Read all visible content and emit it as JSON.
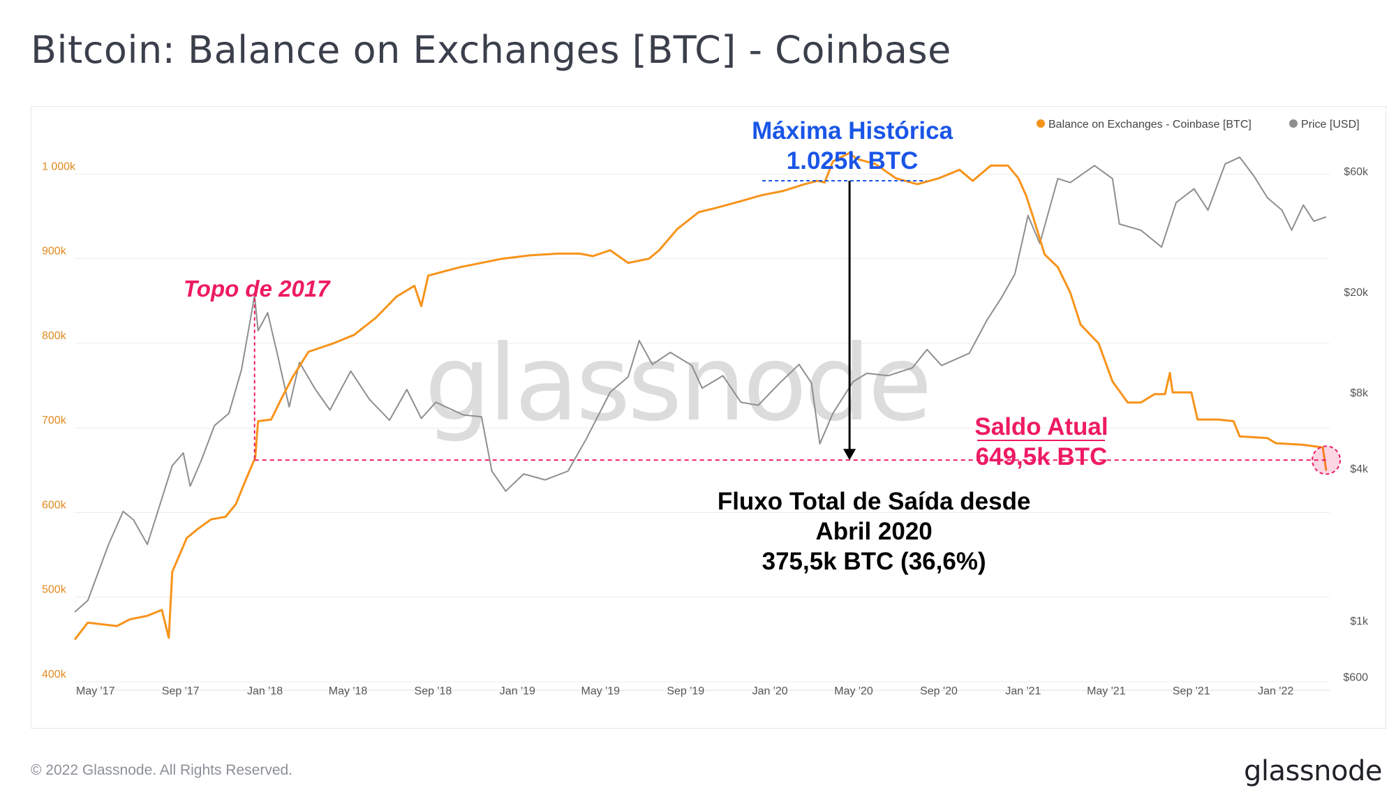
{
  "title": "Bitcoin: Balance on Exchanges [BTC] - Coinbase",
  "footer": "© 2022 Glassnode. All Rights Reserved.",
  "brand": "glassnode",
  "watermark": "glassnode",
  "colors": {
    "balance": "#f7931a",
    "price": "#8e8e8e",
    "ath_annotation": "#1a55e8",
    "current_annotation": "#ee1a64",
    "top_annotation": "#ee1a64",
    "outflow_annotation": "#000000",
    "grid": "#ececec",
    "left_axis": "#e08a20",
    "right_axis": "#555555"
  },
  "annotations": {
    "top_2017": "Topo de 2017",
    "ath_line1": "Máxima Histórica",
    "ath_line2": "1.025k BTC",
    "current_line1": "Saldo Atual",
    "current_line2": "649,5k BTC",
    "outflow_line1": "Fluxo Total de Saída desde",
    "outflow_line2": "Abril 2020",
    "outflow_line3": "375,5k BTC (36,6%)"
  },
  "chart_data": {
    "type": "line",
    "title": "Bitcoin: Balance on Exchanges [BTC] - Coinbase",
    "x_range": [
      "2017-04-01",
      "2022-03-20"
    ],
    "x_ticks": [
      "May '17",
      "Sep '17",
      "Jan '18",
      "May '18",
      "Sep '18",
      "Jan '19",
      "May '19",
      "Sep '19",
      "Jan '20",
      "May '20",
      "Sep '20",
      "Jan '21",
      "May '21",
      "Sep '21",
      "Jan '22"
    ],
    "y_left": {
      "ticks": [
        "400k",
        "500k",
        "600k",
        "700k",
        "800k",
        "900k",
        "1 000k"
      ],
      "tick_values": [
        400000,
        500000,
        600000,
        700000,
        800000,
        900000,
        1000000
      ],
      "range": [
        400000,
        1030000
      ]
    },
    "y_right": {
      "scale": "log",
      "ticks": [
        "$600",
        "$1k",
        "$4k",
        "$8k",
        "$20k",
        "$60k"
      ],
      "tick_values": [
        600,
        1000,
        4000,
        8000,
        20000,
        60000
      ]
    },
    "legend": {
      "position": "top-right",
      "items": [
        "Balance on Exchanges - Coinbase [BTC]",
        "Price [USD]"
      ]
    },
    "grid": true,
    "series": [
      {
        "name": "Balance on Exchanges - Coinbase [BTC]",
        "axis": "left",
        "points": [
          [
            "2017-04-01",
            450000
          ],
          [
            "2017-04-20",
            470000
          ],
          [
            "2017-05-10",
            468000
          ],
          [
            "2017-06-01",
            466000
          ],
          [
            "2017-06-20",
            474000
          ],
          [
            "2017-07-15",
            478000
          ],
          [
            "2017-08-05",
            485000
          ],
          [
            "2017-08-15",
            452000
          ],
          [
            "2017-08-20",
            530000
          ],
          [
            "2017-09-10",
            570000
          ],
          [
            "2017-09-25",
            580000
          ],
          [
            "2017-10-15",
            592000
          ],
          [
            "2017-11-05",
            595000
          ],
          [
            "2017-11-20",
            610000
          ],
          [
            "2017-12-05",
            640000
          ],
          [
            "2017-12-18",
            665000
          ],
          [
            "2017-12-22",
            708000
          ],
          [
            "2018-01-10",
            710000
          ],
          [
            "2018-01-25",
            735000
          ],
          [
            "2018-02-10",
            760000
          ],
          [
            "2018-03-05",
            790000
          ],
          [
            "2018-04-10",
            800000
          ],
          [
            "2018-05-10",
            810000
          ],
          [
            "2018-06-10",
            830000
          ],
          [
            "2018-07-10",
            855000
          ],
          [
            "2018-08-05",
            868000
          ],
          [
            "2018-08-15",
            844000
          ],
          [
            "2018-08-25",
            880000
          ],
          [
            "2018-10-10",
            890000
          ],
          [
            "2018-12-10",
            900000
          ],
          [
            "2019-01-20",
            904000
          ],
          [
            "2019-03-01",
            906000
          ],
          [
            "2019-04-01",
            906000
          ],
          [
            "2019-04-20",
            903000
          ],
          [
            "2019-05-15",
            910000
          ],
          [
            "2019-06-10",
            895000
          ],
          [
            "2019-07-10",
            900000
          ],
          [
            "2019-07-25",
            910000
          ],
          [
            "2019-08-20",
            935000
          ],
          [
            "2019-09-20",
            955000
          ],
          [
            "2019-10-15",
            960000
          ],
          [
            "2019-11-20",
            968000
          ],
          [
            "2019-12-20",
            975000
          ],
          [
            "2020-01-20",
            980000
          ],
          [
            "2020-02-20",
            988000
          ],
          [
            "2020-03-10",
            992000
          ],
          [
            "2020-03-20",
            990000
          ],
          [
            "2020-04-01",
            1015000
          ],
          [
            "2020-04-25",
            1025000
          ],
          [
            "2020-05-05",
            1018000
          ],
          [
            "2020-06-01",
            1012000
          ],
          [
            "2020-07-01",
            995000
          ],
          [
            "2020-08-01",
            988000
          ],
          [
            "2020-09-01",
            995000
          ],
          [
            "2020-10-01",
            1005000
          ],
          [
            "2020-10-20",
            992000
          ],
          [
            "2020-11-15",
            1010000
          ],
          [
            "2020-12-10",
            1010000
          ],
          [
            "2020-12-25",
            995000
          ],
          [
            "2021-01-05",
            975000
          ],
          [
            "2021-01-15",
            950000
          ],
          [
            "2021-02-01",
            905000
          ],
          [
            "2021-02-20",
            890000
          ],
          [
            "2021-03-10",
            860000
          ],
          [
            "2021-03-25",
            822000
          ],
          [
            "2021-04-20",
            800000
          ],
          [
            "2021-05-10",
            755000
          ],
          [
            "2021-06-01",
            730000
          ],
          [
            "2021-06-20",
            730000
          ],
          [
            "2021-07-10",
            740000
          ],
          [
            "2021-07-25",
            740000
          ],
          [
            "2021-08-01",
            765000
          ],
          [
            "2021-08-05",
            742000
          ],
          [
            "2021-09-01",
            742000
          ],
          [
            "2021-09-10",
            710000
          ],
          [
            "2021-10-10",
            710000
          ],
          [
            "2021-11-01",
            708000
          ],
          [
            "2021-11-10",
            690000
          ],
          [
            "2021-12-20",
            688000
          ],
          [
            "2022-01-01",
            682000
          ],
          [
            "2022-02-10",
            680000
          ],
          [
            "2022-03-10",
            677000
          ],
          [
            "2022-03-15",
            649500
          ]
        ]
      },
      {
        "name": "Price [USD]",
        "axis": "right",
        "points": [
          [
            "2017-04-01",
            1080
          ],
          [
            "2017-04-20",
            1200
          ],
          [
            "2017-05-20",
            2000
          ],
          [
            "2017-06-10",
            2700
          ],
          [
            "2017-06-25",
            2500
          ],
          [
            "2017-07-15",
            2000
          ],
          [
            "2017-08-01",
            2800
          ],
          [
            "2017-08-20",
            4100
          ],
          [
            "2017-09-05",
            4600
          ],
          [
            "2017-09-15",
            3400
          ],
          [
            "2017-10-01",
            4300
          ],
          [
            "2017-10-20",
            5900
          ],
          [
            "2017-11-10",
            6600
          ],
          [
            "2017-11-28",
            9800
          ],
          [
            "2017-12-10",
            15000
          ],
          [
            "2017-12-17",
            19300
          ],
          [
            "2017-12-22",
            14000
          ],
          [
            "2018-01-05",
            16500
          ],
          [
            "2018-01-20",
            11000
          ],
          [
            "2018-02-05",
            7000
          ],
          [
            "2018-02-20",
            10500
          ],
          [
            "2018-03-15",
            8200
          ],
          [
            "2018-04-05",
            6800
          ],
          [
            "2018-05-05",
            9700
          ],
          [
            "2018-06-01",
            7500
          ],
          [
            "2018-06-30",
            6200
          ],
          [
            "2018-07-25",
            8200
          ],
          [
            "2018-08-15",
            6300
          ],
          [
            "2018-09-05",
            7300
          ],
          [
            "2018-10-15",
            6500
          ],
          [
            "2018-11-10",
            6400
          ],
          [
            "2018-11-25",
            3900
          ],
          [
            "2018-12-15",
            3250
          ],
          [
            "2019-01-10",
            3800
          ],
          [
            "2019-02-10",
            3600
          ],
          [
            "2019-03-15",
            3900
          ],
          [
            "2019-04-10",
            5200
          ],
          [
            "2019-05-15",
            8000
          ],
          [
            "2019-06-10",
            9200
          ],
          [
            "2019-06-26",
            12800
          ],
          [
            "2019-07-15",
            10300
          ],
          [
            "2019-08-10",
            11500
          ],
          [
            "2019-09-10",
            10200
          ],
          [
            "2019-09-25",
            8300
          ],
          [
            "2019-10-25",
            9300
          ],
          [
            "2019-11-20",
            7300
          ],
          [
            "2019-12-15",
            7100
          ],
          [
            "2020-01-15",
            8700
          ],
          [
            "2020-02-12",
            10300
          ],
          [
            "2020-03-01",
            8700
          ],
          [
            "2020-03-13",
            5000
          ],
          [
            "2020-04-01",
            6600
          ],
          [
            "2020-04-30",
            8800
          ],
          [
            "2020-05-20",
            9500
          ],
          [
            "2020-06-20",
            9300
          ],
          [
            "2020-07-25",
            10000
          ],
          [
            "2020-08-15",
            11800
          ],
          [
            "2020-09-05",
            10200
          ],
          [
            "2020-10-15",
            11400
          ],
          [
            "2020-11-10",
            15500
          ],
          [
            "2020-12-01",
            19000
          ],
          [
            "2020-12-20",
            23500
          ],
          [
            "2021-01-08",
            40000
          ],
          [
            "2021-01-25",
            31000
          ],
          [
            "2021-02-20",
            56000
          ],
          [
            "2021-03-10",
            54000
          ],
          [
            "2021-04-14",
            63000
          ],
          [
            "2021-05-10",
            56000
          ],
          [
            "2021-05-20",
            37000
          ],
          [
            "2021-06-20",
            35000
          ],
          [
            "2021-07-20",
            30000
          ],
          [
            "2021-08-10",
            45000
          ],
          [
            "2021-09-05",
            51000
          ],
          [
            "2021-09-25",
            42000
          ],
          [
            "2021-10-20",
            64000
          ],
          [
            "2021-11-10",
            68000
          ],
          [
            "2021-12-01",
            57000
          ],
          [
            "2021-12-20",
            47000
          ],
          [
            "2022-01-10",
            42000
          ],
          [
            "2022-01-24",
            35000
          ],
          [
            "2022-02-10",
            44000
          ],
          [
            "2022-02-25",
            38000
          ],
          [
            "2022-03-15",
            39500
          ]
        ]
      }
    ]
  }
}
